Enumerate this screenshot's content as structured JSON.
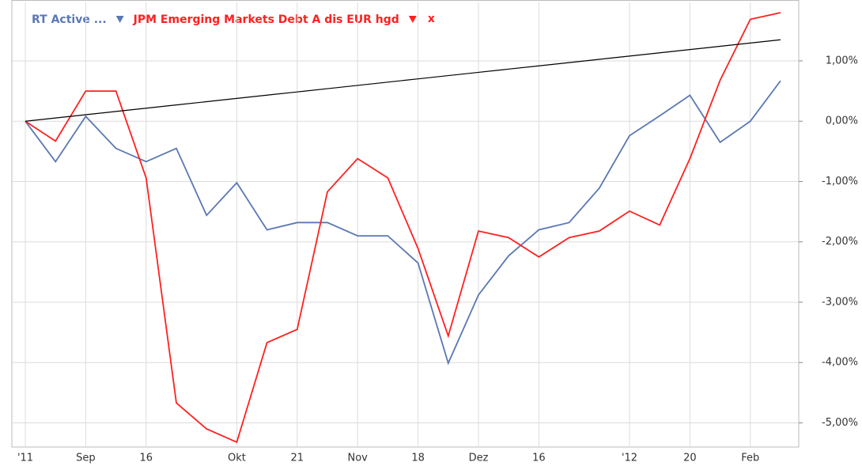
{
  "chart_data": {
    "type": "line",
    "categories": [
      "'11",
      null,
      "Sep",
      null,
      "16",
      null,
      null,
      "Okt",
      null,
      "21",
      null,
      "Nov",
      null,
      "18",
      null,
      "Dez",
      null,
      "16",
      null,
      null,
      "'12",
      null,
      "20",
      null,
      "Feb",
      null
    ],
    "series": [
      {
        "name": "RT Active ...",
        "color": "#5a78b4",
        "values": [
          0,
          -0.67,
          0.08,
          -0.45,
          -0.67,
          -0.45,
          -1.56,
          -1.02,
          -1.8,
          -1.68,
          -1.68,
          -1.9,
          -1.9,
          -2.35,
          -4.01,
          -2.88,
          -2.23,
          -1.8,
          -1.68,
          -1.11,
          -0.24,
          0.09,
          0.43,
          -0.35,
          0,
          0.67
        ]
      },
      {
        "name": "JPM Emerging Markets Debt A dis EUR hgd",
        "color": "#ff2020",
        "values": [
          0,
          -0.33,
          0.5,
          0.5,
          -0.94,
          -4.67,
          -5.1,
          -5.32,
          -3.67,
          -3.45,
          -1.17,
          -0.62,
          -0.94,
          -2.11,
          -3.56,
          -1.82,
          -1.93,
          -2.25,
          -1.93,
          -1.82,
          -1.49,
          -1.72,
          -0.62,
          0.68,
          1.69,
          1.8
        ]
      },
      {
        "color": "#000000",
        "values": [
          0,
          0.054,
          0.108,
          0.162,
          0.216,
          0.27,
          0.324,
          0.378,
          0.432,
          0.486,
          0.54,
          0.594,
          0.648,
          0.702,
          0.756,
          0.81,
          0.864,
          0.918,
          0.972,
          1.026,
          1.08,
          1.134,
          1.188,
          1.242,
          1.296,
          1.35
        ]
      }
    ],
    "remove_label": "x",
    "ylim": [
      -5.4,
      1.97
    ],
    "yticks": [
      {
        "value": 1,
        "label": "1,00%"
      },
      {
        "value": 0,
        "label": "0,00%"
      },
      {
        "value": -1,
        "label": "-1,00%"
      },
      {
        "value": -2,
        "label": "-2,00%"
      },
      {
        "value": -3,
        "label": "-3,00%"
      },
      {
        "value": -4,
        "label": "-4,00%"
      },
      {
        "value": -5,
        "label": "-5,00%"
      }
    ],
    "grid": true
  }
}
